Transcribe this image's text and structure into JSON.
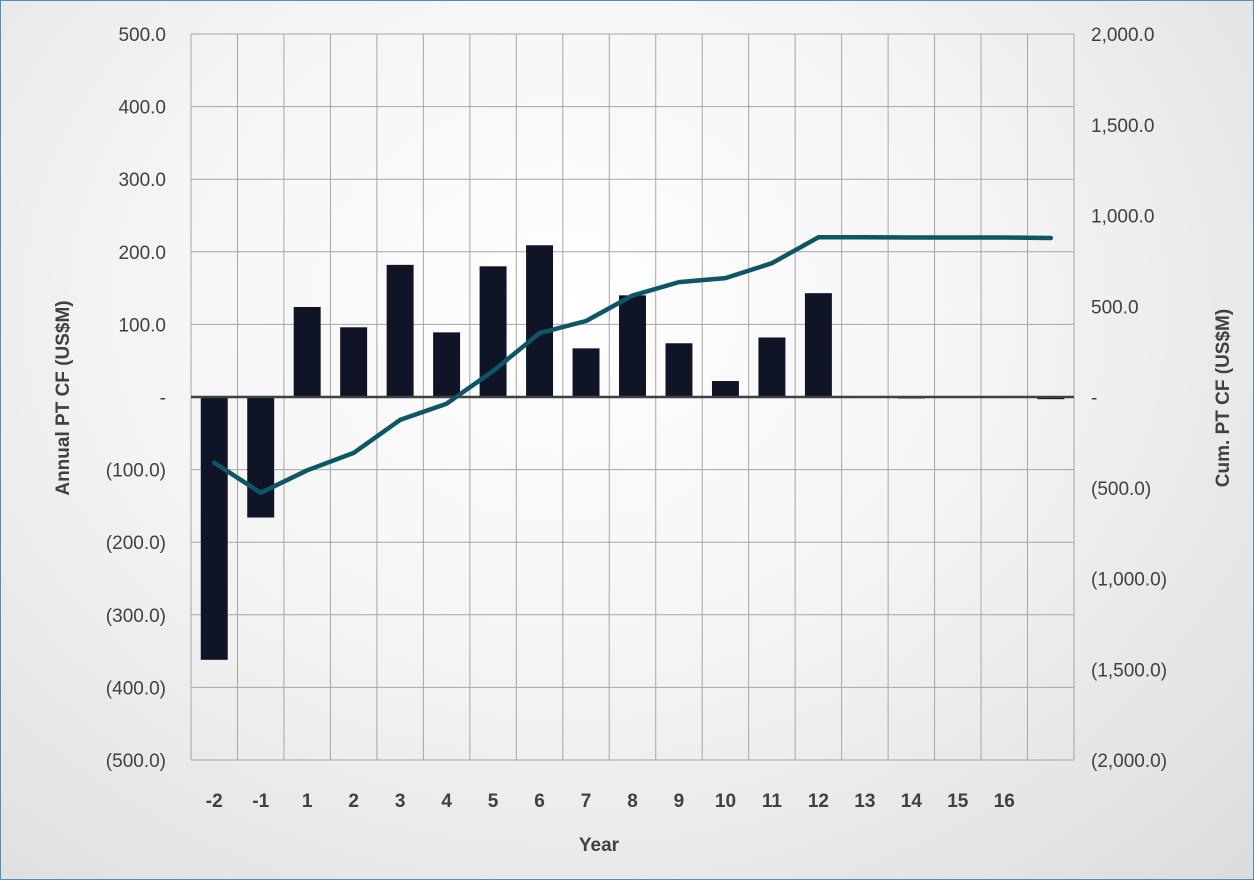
{
  "chart_data": {
    "type": "bar+line",
    "title": "",
    "xlabel": "Year",
    "ylabel_left": "Annual PT CF (US$M)",
    "ylabel_right": "Cum. PT CF (US$M)",
    "grid": true,
    "legend": "none",
    "x": [
      "-2",
      "-1",
      "1",
      "2",
      "3",
      "4",
      "5",
      "6",
      "7",
      "8",
      "9",
      "10",
      "11",
      "12",
      "13",
      "14",
      "15",
      "16",
      "17"
    ],
    "x_tick_labels": [
      "-2",
      "-1",
      "1",
      "2",
      "3",
      "4",
      "5",
      "6",
      "7",
      "8",
      "9",
      "10",
      "11",
      "12",
      "13",
      "14",
      "15",
      "16",
      ""
    ],
    "ylim_left": [
      -500,
      500
    ],
    "ylim_right": [
      -2000,
      2000
    ],
    "y_ticks_left": [
      500,
      400,
      300,
      200,
      100,
      0,
      -100,
      -200,
      -300,
      -400,
      -500
    ],
    "y_tick_labels_left": [
      "500.0",
      "400.0",
      "300.0",
      "200.0",
      "100.0",
      "-",
      "(100.0)",
      "(200.0)",
      "(300.0)",
      "(400.0)",
      "(500.0)"
    ],
    "y_ticks_right": [
      2000,
      1500,
      1000,
      500,
      0,
      -500,
      -1000,
      -1500,
      -2000
    ],
    "y_tick_labels_right": [
      "2,000.0",
      "1,500.0",
      "1,000.0",
      "500.0",
      "-",
      "(500.0)",
      "(1,000.0)",
      "(1,500.0)",
      "(2,000.0)"
    ],
    "series": [
      {
        "type": "bar",
        "axis": "left",
        "color": "#0f1426",
        "values": [
          -362,
          -166,
          124,
          96,
          182,
          89,
          180,
          209,
          67,
          140,
          74,
          22,
          82,
          143,
          0,
          -1,
          0,
          0,
          -3
        ]
      },
      {
        "type": "line",
        "axis": "right",
        "color": "#0e5566",
        "values": [
          -362,
          -528,
          -404,
          -308,
          -126,
          -37,
          143,
          352,
          419,
          559,
          633,
          655,
          737,
          880,
          880,
          879,
          879,
          879,
          876
        ]
      }
    ]
  }
}
